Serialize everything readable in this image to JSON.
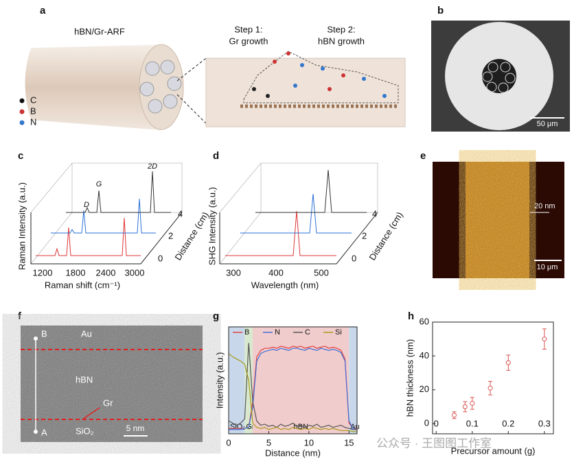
{
  "panels": {
    "a": {
      "label": "a",
      "title": "hBN/Gr-ARF",
      "step1": "Step 1:",
      "step1_text": "Gr growth",
      "step2": "Step 2:",
      "step2_text": "hBN growth",
      "legend": [
        "C",
        "B",
        "N"
      ]
    },
    "b": {
      "label": "b",
      "scale_bar": "50 μm"
    },
    "c": {
      "label": "c",
      "y_label": "Raman Intensity (a.u.)",
      "x_label": "Raman shift (cm⁻¹)",
      "z_label": "Distance (cm)",
      "x_ticks": [
        "1200",
        "1800",
        "2400",
        "3000"
      ],
      "z_ticks": [
        "0",
        "2",
        "4"
      ],
      "peaks": [
        "D",
        "G",
        "2D"
      ]
    },
    "d": {
      "label": "d",
      "y_label": "SHG Intensity (a.u.)",
      "x_label": "Wavelength (nm)",
      "z_label": "Distance (cm)",
      "x_ticks": [
        "300",
        "400",
        "500"
      ],
      "z_ticks": [
        "0",
        "2",
        "4"
      ]
    },
    "e": {
      "label": "e",
      "height_label": "20 nm",
      "scale_bar": "10 μm"
    },
    "f": {
      "label": "f",
      "point_b": "B",
      "point_a": "A",
      "layers": [
        "Au",
        "hBN",
        "Gr",
        "SiO₂"
      ],
      "scale_bar": "5 nm"
    },
    "g": {
      "label": "g"
    },
    "h": {
      "label": "h"
    }
  },
  "chart_data": [
    {
      "type": "line",
      "xlabel": "Distance (nm)",
      "ylabel": "Intensity (a.u.)",
      "xlim": [
        0,
        16
      ],
      "xticks": [
        0,
        5,
        10,
        15
      ],
      "ylim": [
        0,
        1
      ],
      "regions": [
        {
          "label": "SiO₂",
          "range": [
            0,
            2
          ],
          "color": "#c8d8ea"
        },
        {
          "label": "Gr",
          "range": [
            2,
            3
          ],
          "color": "#d8e9cf"
        },
        {
          "label": "hBN",
          "range": [
            3,
            15
          ],
          "color": "#f1cccc"
        },
        {
          "label": "Au",
          "range": [
            15,
            16
          ],
          "color": "#c8d8ea"
        }
      ],
      "x": [
        0,
        0.5,
        1,
        1.5,
        2,
        2.5,
        3,
        3.5,
        4,
        4.5,
        5,
        5.5,
        6,
        6.5,
        7,
        7.5,
        8,
        8.5,
        9,
        9.5,
        10,
        10.5,
        11,
        11.5,
        12,
        12.5,
        13,
        13.5,
        14,
        14.5,
        15,
        15.5,
        16
      ],
      "series": [
        {
          "name": "B",
          "color": "#e04040",
          "values": [
            0.05,
            0.05,
            0.05,
            0.05,
            0.05,
            0.06,
            0.3,
            0.72,
            0.78,
            0.8,
            0.8,
            0.81,
            0.8,
            0.82,
            0.81,
            0.8,
            0.82,
            0.81,
            0.82,
            0.8,
            0.81,
            0.82,
            0.8,
            0.81,
            0.82,
            0.8,
            0.81,
            0.8,
            0.78,
            0.7,
            0.1,
            0.05,
            0.05
          ]
        },
        {
          "name": "N",
          "color": "#3f6fd8",
          "values": [
            0.04,
            0.04,
            0.04,
            0.04,
            0.05,
            0.06,
            0.25,
            0.68,
            0.75,
            0.77,
            0.78,
            0.79,
            0.78,
            0.8,
            0.79,
            0.78,
            0.8,
            0.8,
            0.79,
            0.78,
            0.8,
            0.79,
            0.78,
            0.8,
            0.79,
            0.78,
            0.79,
            0.78,
            0.76,
            0.68,
            0.12,
            0.05,
            0.04
          ]
        },
        {
          "name": "C",
          "color": "#555555",
          "values": [
            0.12,
            0.1,
            0.08,
            0.1,
            0.14,
            0.85,
            0.3,
            0.12,
            0.08,
            0.09,
            0.07,
            0.08,
            0.06,
            0.09,
            0.07,
            0.08,
            0.1,
            0.07,
            0.08,
            0.06,
            0.08,
            0.07,
            0.09,
            0.06,
            0.07,
            0.08,
            0.06,
            0.07,
            0.08,
            0.06,
            0.05,
            0.04,
            0.04
          ]
        },
        {
          "name": "Si",
          "color": "#a89a1a",
          "values": [
            0.75,
            0.72,
            0.7,
            0.68,
            0.65,
            0.5,
            0.1,
            0.06,
            0.05,
            0.06,
            0.04,
            0.05,
            0.06,
            0.04,
            0.05,
            0.04,
            0.06,
            0.05,
            0.04,
            0.05,
            0.04,
            0.06,
            0.05,
            0.04,
            0.05,
            0.04,
            0.05,
            0.04,
            0.03,
            0.03,
            0.03,
            0.02,
            0.02
          ]
        }
      ],
      "legend": "top"
    },
    {
      "type": "errorbar",
      "xlabel": "Precursor amount (g)",
      "ylabel": "hBN  thickness (nm)",
      "xlim": [
        -0.01,
        0.325
      ],
      "ylim": [
        -6,
        60
      ],
      "xticks": [
        0,
        0.1,
        0.2,
        0.3
      ],
      "yticks": [
        0,
        20,
        40,
        60
      ],
      "color": "#d9534f",
      "x": [
        0.05,
        0.08,
        0.1,
        0.15,
        0.2,
        0.3
      ],
      "values": [
        5,
        10,
        12,
        21,
        36,
        50
      ],
      "errors": [
        2,
        3,
        3.5,
        4,
        4.5,
        6
      ]
    }
  ],
  "watermark": "公众号 · 王图图工作室"
}
